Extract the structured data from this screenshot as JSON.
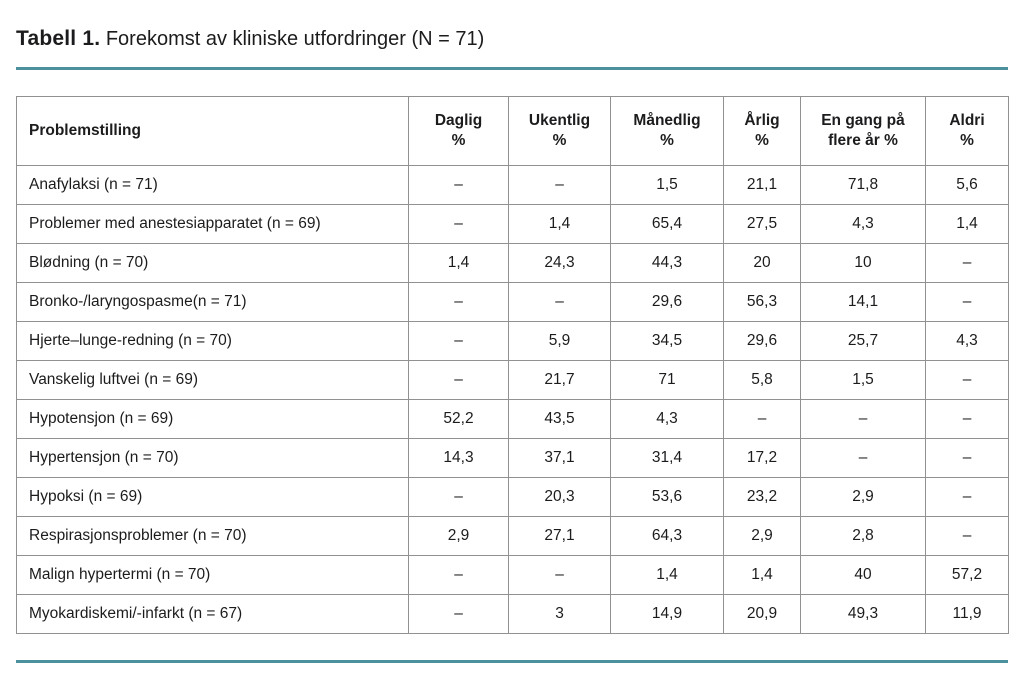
{
  "title": {
    "label": "Tabell 1.",
    "text": "Forekomst av kliniske utfordringer (N = 71)"
  },
  "theme": {
    "accent_teal": "#4a919d",
    "outer_border": "#3c3c3c",
    "inner_border": "#919191",
    "text_color": "#1c1c1e"
  },
  "table": {
    "columns": [
      {
        "key": "problemstilling",
        "lines": [
          "Problemstilling"
        ],
        "align": "left"
      },
      {
        "key": "daglig",
        "lines": [
          "Daglig",
          "%"
        ],
        "align": "center"
      },
      {
        "key": "ukentlig",
        "lines": [
          "Ukentlig",
          "%"
        ],
        "align": "center"
      },
      {
        "key": "manedlig",
        "lines": [
          "Månedlig",
          "%"
        ],
        "align": "center"
      },
      {
        "key": "arlig",
        "lines": [
          "Årlig",
          "%"
        ],
        "align": "center"
      },
      {
        "key": "en-gang-pa-flere-ar",
        "lines": [
          "En gang på",
          "flere år %"
        ],
        "align": "center"
      },
      {
        "key": "aldri",
        "lines": [
          "Aldri",
          "%"
        ],
        "align": "center"
      }
    ],
    "rows": [
      {
        "label": "Anafylaksi (n = 71)",
        "values": [
          "–",
          "–",
          "1,5",
          "21,1",
          "71,8",
          "5,6"
        ]
      },
      {
        "label": "Problemer med anestesiapparatet (n = 69)",
        "values": [
          "–",
          "1,4",
          "65,4",
          "27,5",
          "4,3",
          "1,4"
        ]
      },
      {
        "label": "Blødning (n = 70)",
        "values": [
          "1,4",
          "24,3",
          "44,3",
          "20",
          "10",
          "–"
        ]
      },
      {
        "label": "Bronko-/laryngospasme(n = 71)",
        "values": [
          "–",
          "–",
          "29,6",
          "56,3",
          "14,1",
          "–"
        ]
      },
      {
        "label": "Hjerte–lunge-redning (n = 70)",
        "values": [
          "–",
          "5,9",
          "34,5",
          "29,6",
          "25,7",
          "4,3"
        ]
      },
      {
        "label": "Vanskelig luftvei (n = 69)",
        "values": [
          "–",
          "21,7",
          "71",
          "5,8",
          "1,5",
          "–"
        ]
      },
      {
        "label": "Hypotensjon (n = 69)",
        "values": [
          "52,2",
          "43,5",
          "4,3",
          "–",
          "–",
          "–"
        ]
      },
      {
        "label": "Hypertensjon (n = 70)",
        "values": [
          "14,3",
          "37,1",
          "31,4",
          "17,2",
          "–",
          "–"
        ]
      },
      {
        "label": "Hypoksi (n = 69)",
        "values": [
          "–",
          "20,3",
          "53,6",
          "23,2",
          "2,9",
          "–"
        ]
      },
      {
        "label": "Respirasjonsproblemer (n = 70)",
        "values": [
          "2,9",
          "27,1",
          "64,3",
          "2,9",
          "2,8",
          "–"
        ]
      },
      {
        "label": "Malign hypertermi (n = 70)",
        "values": [
          "–",
          "–",
          "1,4",
          "1,4",
          "40",
          "57,2"
        ]
      },
      {
        "label": "Myokardiskemi/-infarkt (n = 67)",
        "values": [
          "–",
          "3",
          "14,9",
          "20,9",
          "49,3",
          "11,9"
        ]
      }
    ]
  }
}
